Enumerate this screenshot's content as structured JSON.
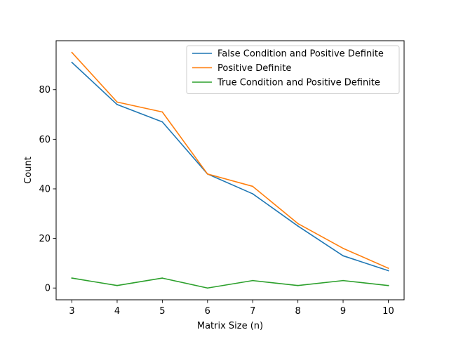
{
  "chart_data": {
    "type": "line",
    "xlabel": "Matrix Size (n)",
    "ylabel": "Count",
    "x": [
      3,
      4,
      5,
      6,
      7,
      8,
      9,
      10
    ],
    "xlim": [
      2.65,
      10.35
    ],
    "ylim": [
      -4.75,
      99.75
    ],
    "xticks": [
      3,
      4,
      5,
      6,
      7,
      8,
      9,
      10
    ],
    "yticks": [
      0,
      20,
      40,
      60,
      80
    ],
    "grid": false,
    "legend_position": "upper right",
    "series": [
      {
        "name": "False Condition and Positive Definite",
        "color": "#1f77b4",
        "values": [
          91,
          74,
          67,
          46,
          38,
          25,
          13,
          7
        ]
      },
      {
        "name": "Positive Definite",
        "color": "#ff7f0e",
        "values": [
          95,
          75,
          71,
          46,
          41,
          26,
          16,
          8
        ]
      },
      {
        "name": "True Condition and Positive Definite",
        "color": "#2ca02c",
        "values": [
          4,
          1,
          4,
          0,
          3,
          1,
          3,
          1
        ]
      }
    ]
  }
}
